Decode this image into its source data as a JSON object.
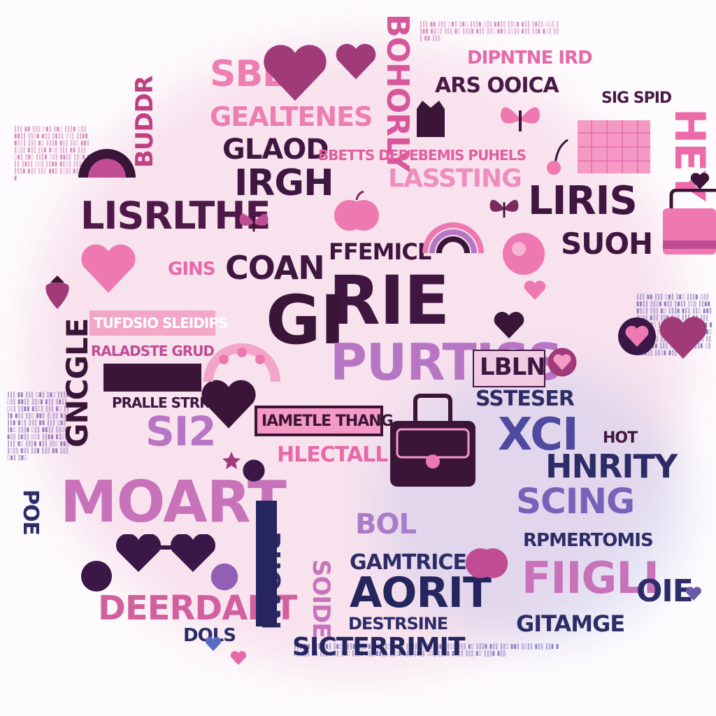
{
  "words": {
    "sbe": "SBE",
    "gelatenes": "GEALTENES",
    "glaod": "GLAOD",
    "irgh": "IRGH",
    "lisrlthe": "LISRLTHE",
    "fremicl": "FFEMICL",
    "rie": "RIE",
    "gi": "GI",
    "coan": "COAN",
    "lassting": "LASSTING",
    "liris": "LIRIS",
    "suoh": "SUOH",
    "hey": "HEY",
    "purtiss": "PURTISS",
    "lbln": "LBLN",
    "moart": "MOART",
    "hnrity": "HNRITY",
    "scing": "SCING",
    "fiigli": "FIIGLI",
    "oie": "OIE",
    "aorit": "AORIT",
    "deerdant": "DEERDANT",
    "sicterrimit": "SICTERRIMIT",
    "gamtrice": "GAMTRICE",
    "gitamge": "GITAMGE",
    "rpmertomis": "RPMERTOMIS",
    "xci": "XCI",
    "ssteser": "SSTESER",
    "hot": "HOT",
    "iamitle_thang": "IAMETLE THANG",
    "hlectall": "HLECTALL",
    "pralle_strk": "PRALLE STRK",
    "sii": "SI2",
    "bol": "BOL",
    "dols": "DOLS",
    "destrsine": "DESTRSINE",
    "ars_ooica": "ARS OOICA",
    "sig_spid": "SIG SPID",
    "dipntne_ird": "DIPNTNE IRD",
    "ruoan": "RUOAN",
    "bohorly": "BOHORLY",
    "buddr": "BUDDR",
    "gins": "GINS",
    "bbtits": "BBETTS DFDEBEMIS PUHELS",
    "tufdsio": "TUFDSIO SLEIDIPS",
    "ralanie": "RALADSTE GRUD",
    "cmoeg": "GNCGLE",
    "poe": "POE",
    "sroid": "SOIDE"
  },
  "colors": {
    "pink": "#e96aa6",
    "light_pink": "#f3a5c9",
    "magenta": "#c04c93",
    "plum": "#5b1a52",
    "dark_purple": "#3a1747",
    "navy": "#25265e",
    "violet": "#9160b4"
  },
  "icons": [
    "heart-icon",
    "butterfly-icon",
    "rainbow-icon",
    "handbag-icon",
    "heart-sunglasses-icon",
    "strawberry-icon",
    "apple-icon",
    "flower-wreath-icon",
    "sun-icon",
    "grid-board-icon",
    "cherry-icon",
    "dots-icon",
    "star-icon"
  ]
}
